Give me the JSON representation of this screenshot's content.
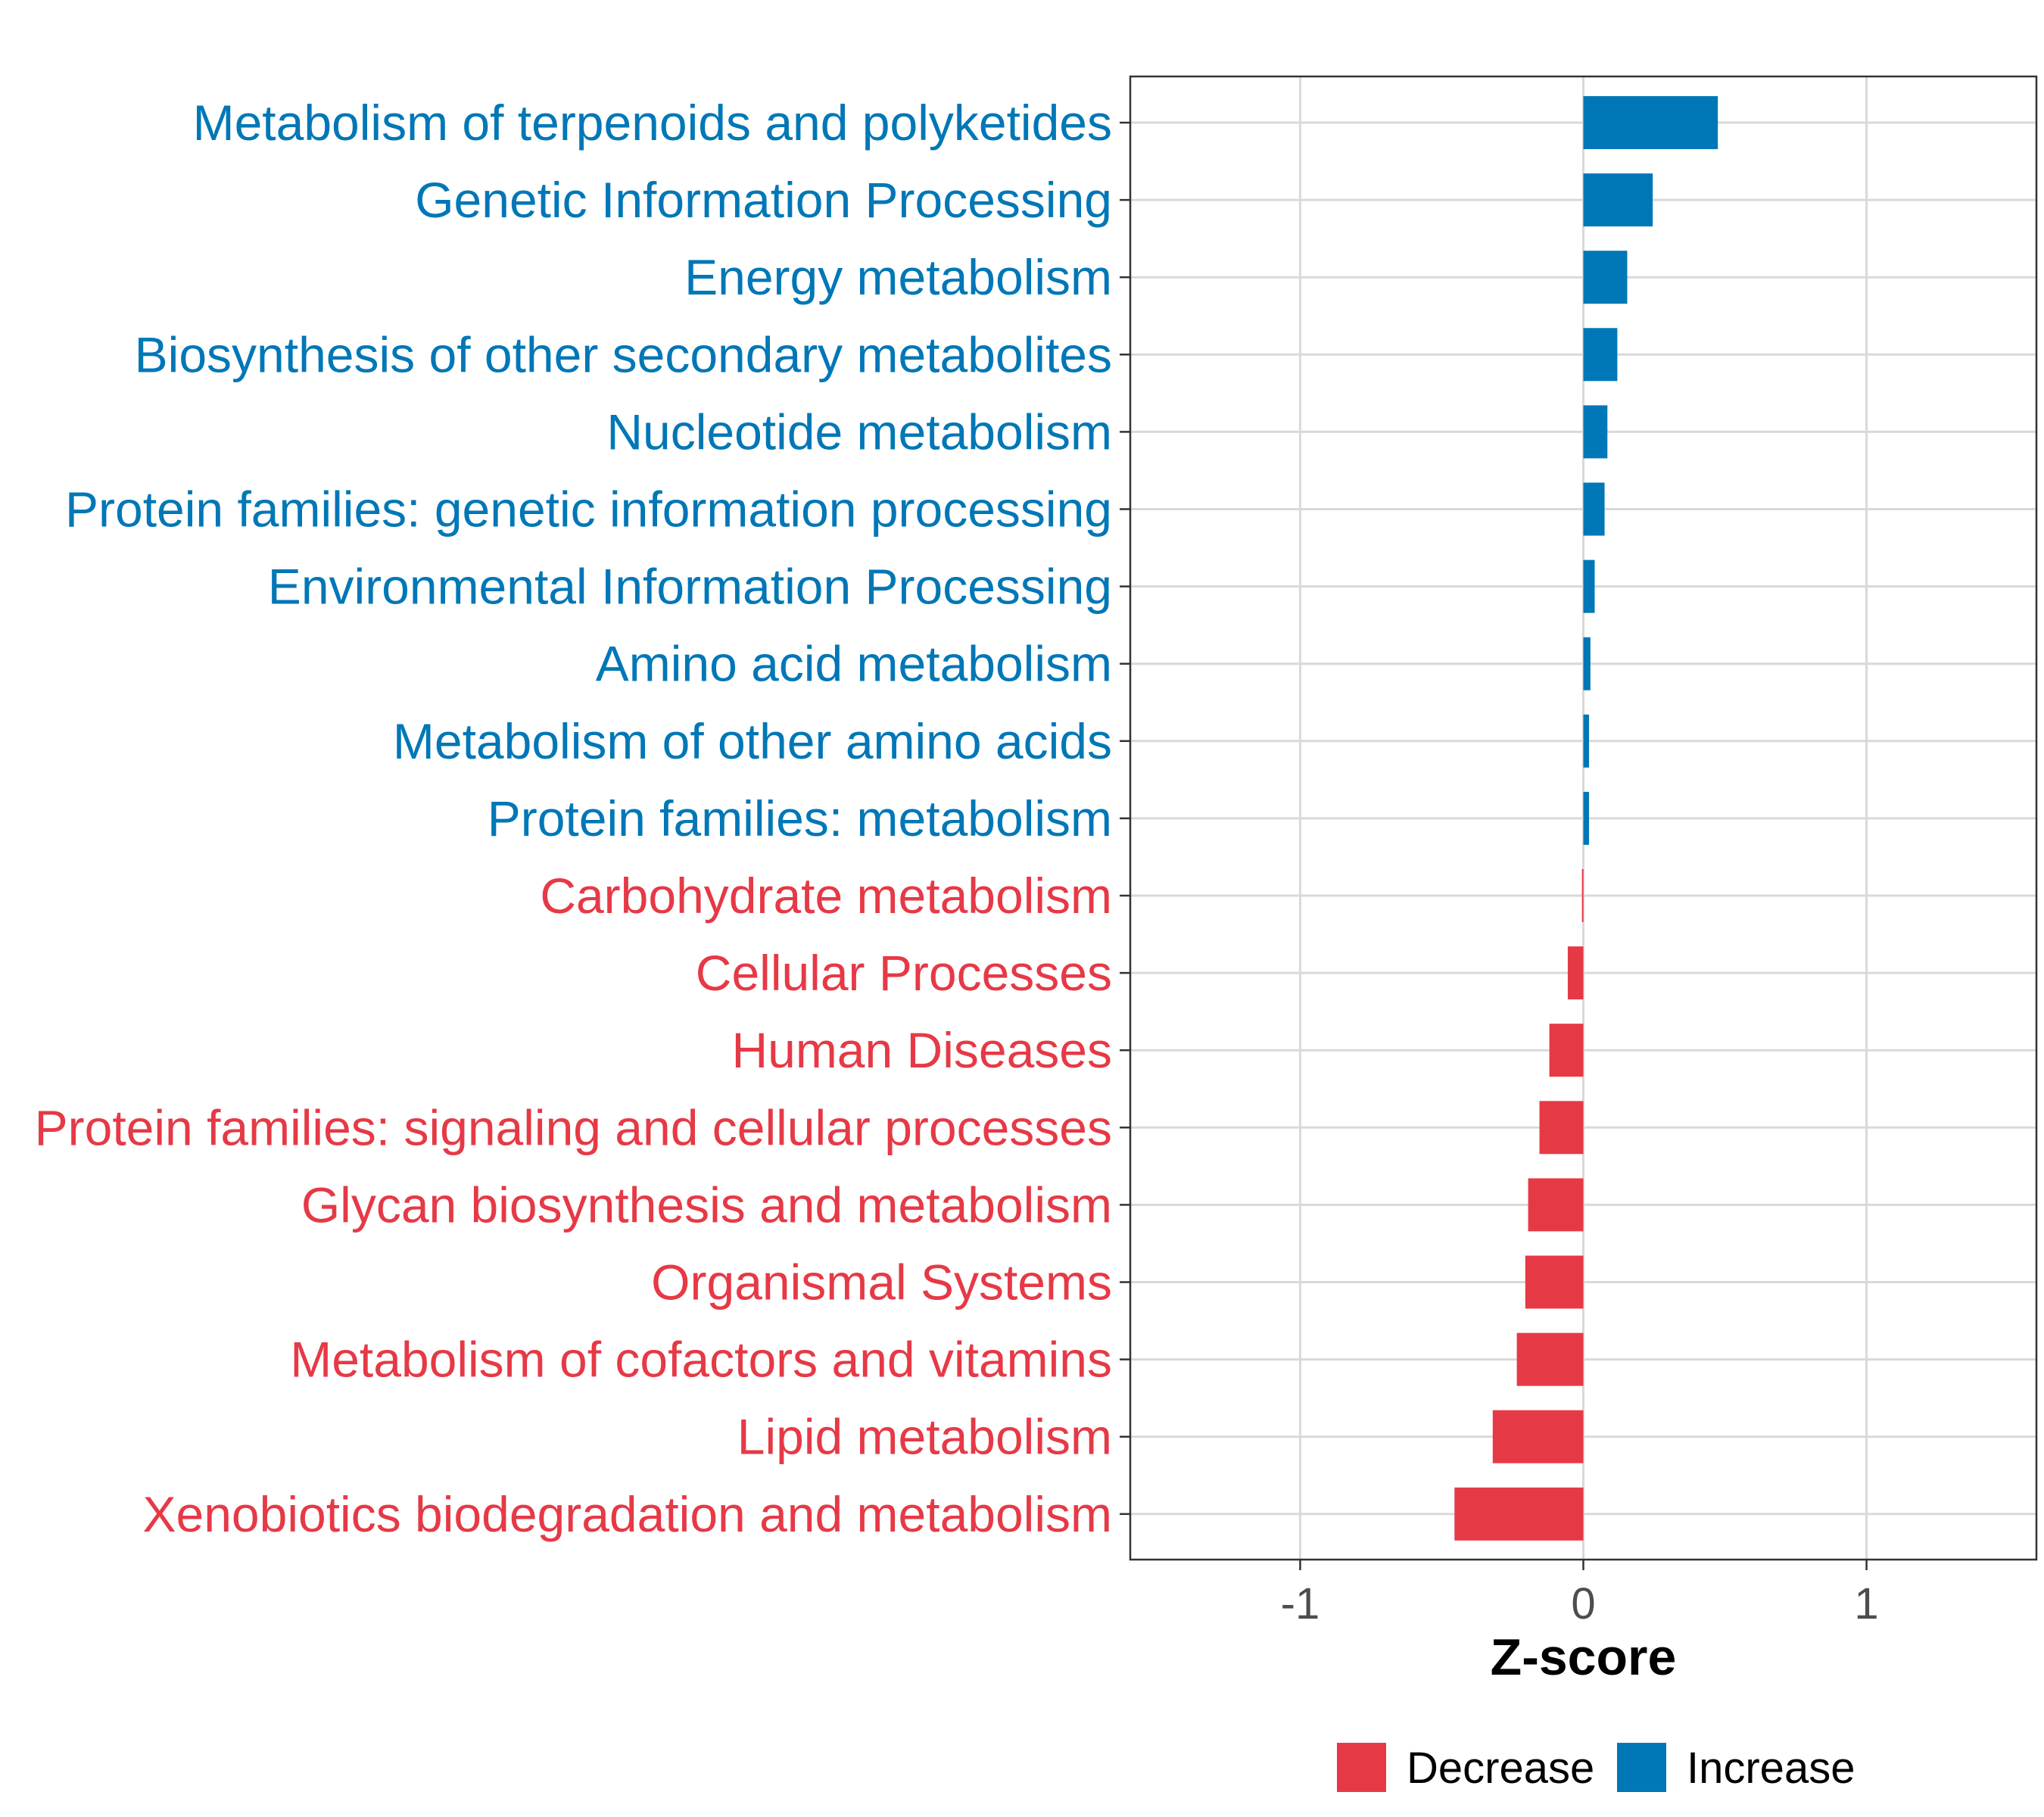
{
  "chart_data": {
    "type": "bar",
    "orientation": "horizontal",
    "title": "",
    "xlabel": "Z-score",
    "ylabel": "",
    "xlim": [
      -1.6,
      1.6
    ],
    "xticks": [
      -1,
      0,
      1
    ],
    "xtick_labels": [
      "-1",
      "0",
      "1"
    ],
    "grid": true,
    "legend_position": "bottom",
    "colors": {
      "Decrease": "#e63946",
      "Increase": "#0077b6"
    },
    "legend": [
      {
        "name": "Decrease",
        "color": "#e63946"
      },
      {
        "name": "Increase",
        "color": "#0077b6"
      }
    ],
    "categories": [
      "Metabolism of terpenoids and polyketides",
      "Genetic Information Processing",
      "Energy metabolism",
      "Biosynthesis of other secondary metabolites",
      "Nucleotide metabolism",
      "Protein families: genetic information processing",
      "Environmental Information Processing",
      "Amino acid metabolism",
      "Metabolism of other amino acids",
      "Protein families: metabolism",
      "Carbohydrate metabolism",
      "Cellular Processes",
      "Human Diseases",
      "Protein families: signaling and cellular processes",
      "Glycan biosynthesis and metabolism",
      "Organismal Systems",
      "Metabolism of cofactors and vitamins",
      "Lipid metabolism",
      "Xenobiotics biodegradation and metabolism"
    ],
    "values": [
      0.475,
      0.245,
      0.155,
      0.12,
      0.085,
      0.075,
      0.04,
      0.025,
      0.02,
      0.02,
      -0.005,
      -0.055,
      -0.12,
      -0.155,
      -0.195,
      -0.205,
      -0.235,
      -0.32,
      -0.455
    ],
    "groups": [
      "Increase",
      "Increase",
      "Increase",
      "Increase",
      "Increase",
      "Increase",
      "Increase",
      "Increase",
      "Increase",
      "Increase",
      "Decrease",
      "Decrease",
      "Decrease",
      "Decrease",
      "Decrease",
      "Decrease",
      "Decrease",
      "Decrease",
      "Decrease"
    ]
  }
}
